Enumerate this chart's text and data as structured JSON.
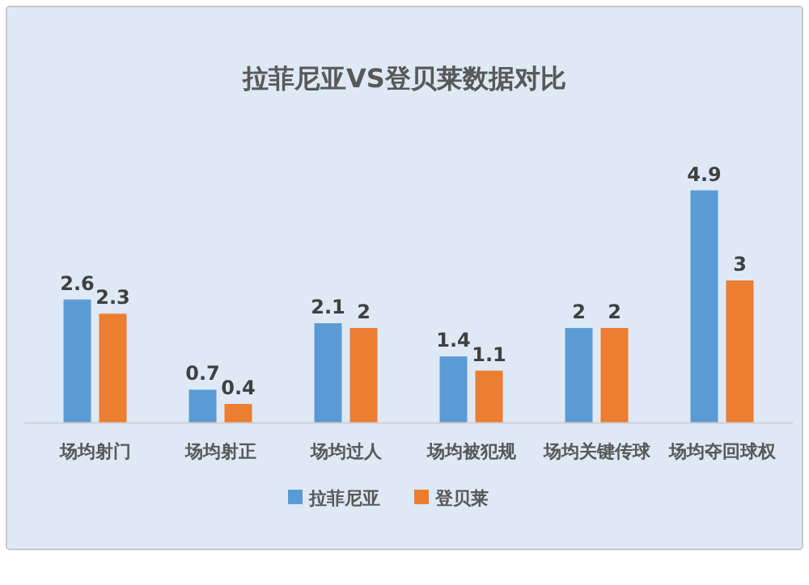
{
  "chart_data": {
    "type": "bar",
    "title": "拉菲尼亚VS登贝莱数据对比",
    "categories": [
      "场均射门",
      "场均射正",
      "场均过人",
      "场均被犯规",
      "场均关键传球",
      "场均夺回球权"
    ],
    "series": [
      {
        "name": "拉菲尼亚",
        "color": "#5b9bd5",
        "values": [
          2.6,
          0.7,
          2.1,
          1.4,
          2.0,
          4.9
        ]
      },
      {
        "name": "登贝莱",
        "color": "#ed7d31",
        "values": [
          2.3,
          0.4,
          2.0,
          1.1,
          2.0,
          3
        ]
      }
    ],
    "tick_labels": "x",
    "data_labels": true,
    "legend": "bottom"
  }
}
